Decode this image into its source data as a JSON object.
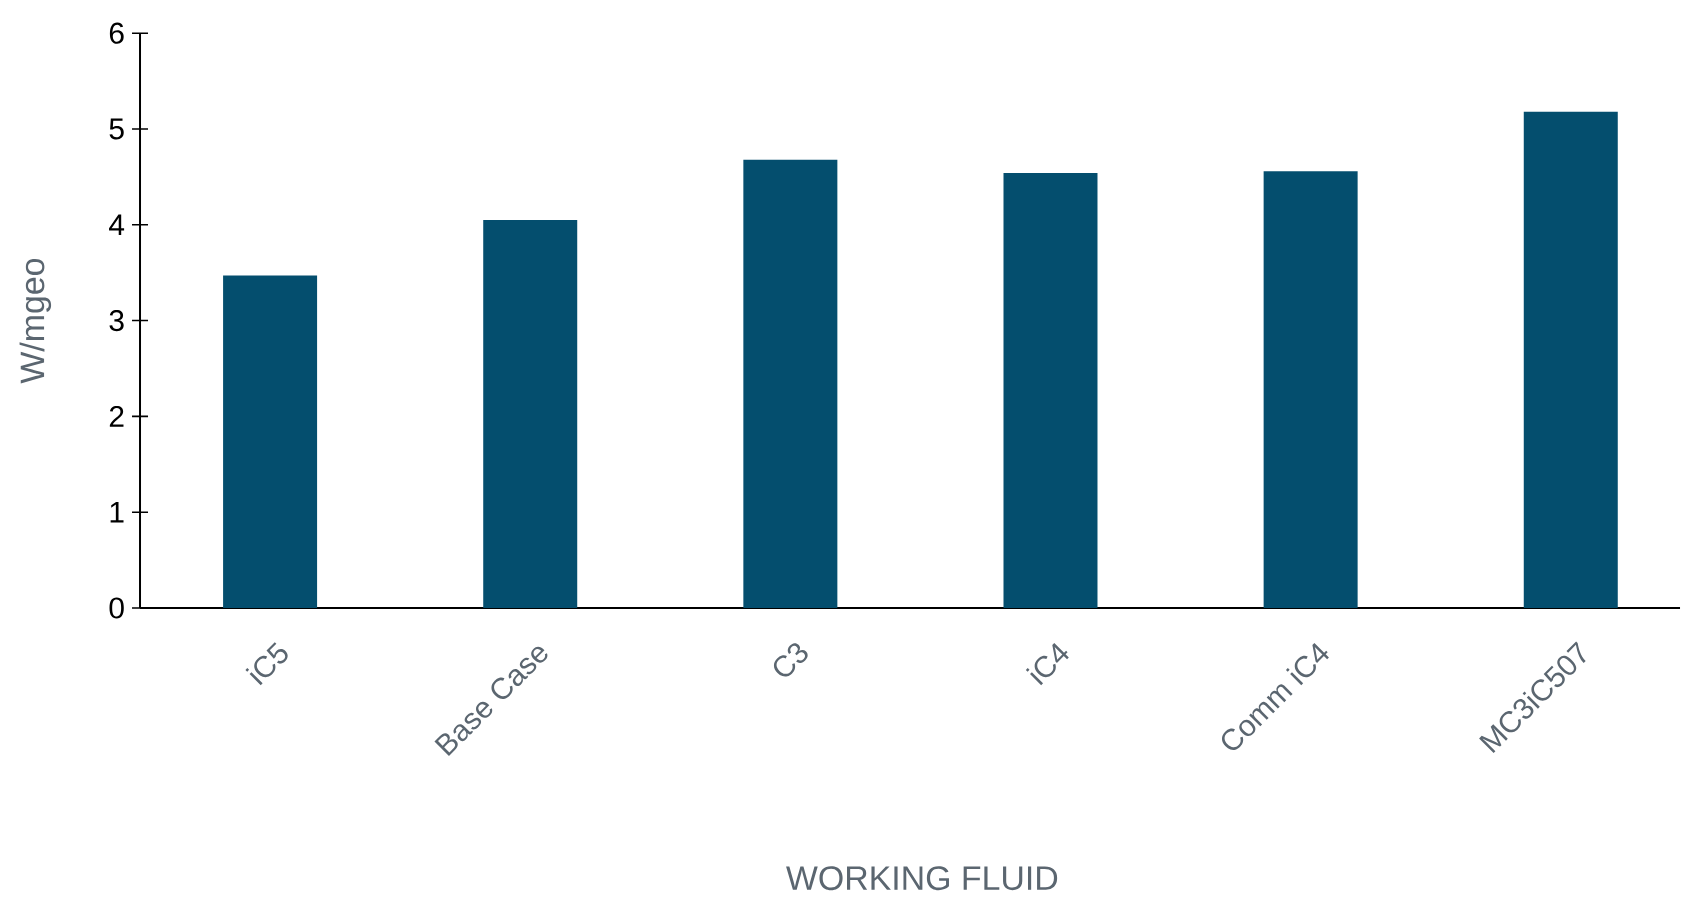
{
  "chart_data": {
    "type": "bar",
    "categories": [
      "iC5",
      "Base Case",
      "C3",
      "iC4",
      "Comm iC4",
      "MC3iC507"
    ],
    "values": [
      3.47,
      4.05,
      4.68,
      4.54,
      4.56,
      5.18
    ],
    "color": "#044e6e",
    "xlabel": "WORKING FLUID",
    "ylabel": "W/mgeo",
    "ylim": [
      0,
      6
    ],
    "yticks": [
      0,
      1,
      2,
      3,
      4,
      5,
      6
    ]
  }
}
